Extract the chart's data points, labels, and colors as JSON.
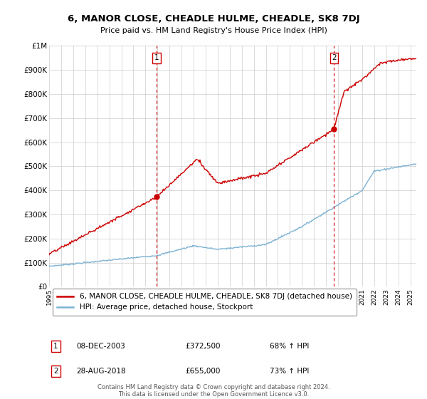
{
  "title": "6, MANOR CLOSE, CHEADLE HULME, CHEADLE, SK8 7DJ",
  "subtitle": "Price paid vs. HM Land Registry's House Price Index (HPI)",
  "x_start": 1995.0,
  "x_end": 2025.5,
  "y_min": 0,
  "y_max": 1000000,
  "yticks": [
    0,
    100000,
    200000,
    300000,
    400000,
    500000,
    600000,
    700000,
    800000,
    900000,
    1000000
  ],
  "ytick_labels": [
    "£0",
    "£100K",
    "£200K",
    "£300K",
    "£400K",
    "£500K",
    "£600K",
    "£700K",
    "£800K",
    "£900K",
    "£1M"
  ],
  "xtick_years": [
    1995,
    1996,
    1997,
    1998,
    1999,
    2000,
    2001,
    2002,
    2003,
    2004,
    2005,
    2006,
    2007,
    2008,
    2009,
    2010,
    2011,
    2012,
    2013,
    2014,
    2015,
    2016,
    2017,
    2018,
    2019,
    2020,
    2021,
    2022,
    2023,
    2024,
    2025
  ],
  "transaction1_x": 2003.92,
  "transaction1_y": 372500,
  "transaction1_label": "1",
  "transaction1_date": "08-DEC-2003",
  "transaction1_price": "£372,500",
  "transaction1_hpi": "68% ↑ HPI",
  "transaction2_x": 2018.65,
  "transaction2_y": 655000,
  "transaction2_label": "2",
  "transaction2_date": "28-AUG-2018",
  "transaction2_price": "£655,000",
  "transaction2_hpi": "73% ↑ HPI",
  "red_line_color": "#cc0000",
  "blue_line_color": "#7fb3d3",
  "vline_color": "#cc0000",
  "marker_color": "#cc0000",
  "grid_color": "#cccccc",
  "bg_color": "#ffffff",
  "legend_line1": "6, MANOR CLOSE, CHEADLE HULME, CHEADLE, SK8 7DJ (detached house)",
  "legend_line2": "HPI: Average price, detached house, Stockport",
  "footer": "Contains HM Land Registry data © Crown copyright and database right 2024.\nThis data is licensed under the Open Government Licence v3.0."
}
